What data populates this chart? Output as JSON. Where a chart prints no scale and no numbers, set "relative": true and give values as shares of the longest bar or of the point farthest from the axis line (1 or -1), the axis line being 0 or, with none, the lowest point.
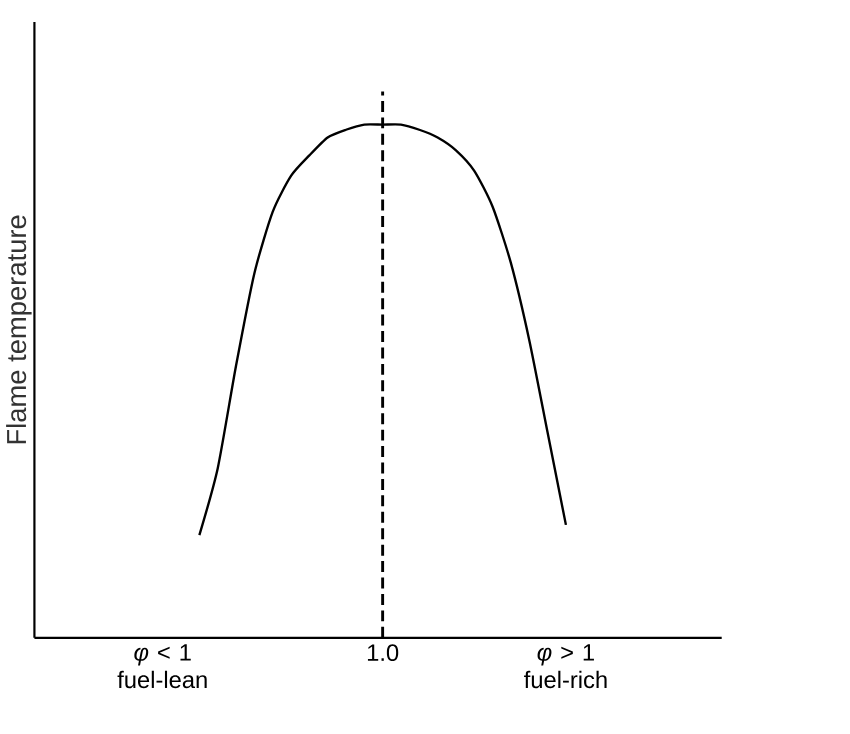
{
  "chart_data": {
    "type": "line",
    "relative": true,
    "ylabel": "Flame temperature",
    "categories": [
      "*φ* < 1 fuel-lean",
      null,
      null,
      null,
      null,
      null,
      null,
      null,
      null,
      null,
      null,
      null,
      "1.0",
      null,
      null,
      null,
      null,
      null,
      null,
      null,
      null,
      null,
      "*φ* > 1 fuel-rich"
    ],
    "tick_labels": "x",
    "series": [
      {
        "color": "#000000",
        "line_style": "solid",
        "marker": "none",
        "values": [
          null,
          null,
          0.2,
          0.33,
          0.53,
          0.71,
          0.83,
          0.9,
          0.94,
          0.975,
          0.99,
          1.0,
          1.0,
          1.0,
          0.99,
          0.975,
          0.95,
          0.91,
          0.84,
          0.73,
          0.58,
          0.4,
          0.22
        ]
      }
    ],
    "ref_lines": [
      {
        "axis": "x",
        "value": "1.0",
        "line_style": "dashed",
        "color": "#000000"
      }
    ]
  }
}
